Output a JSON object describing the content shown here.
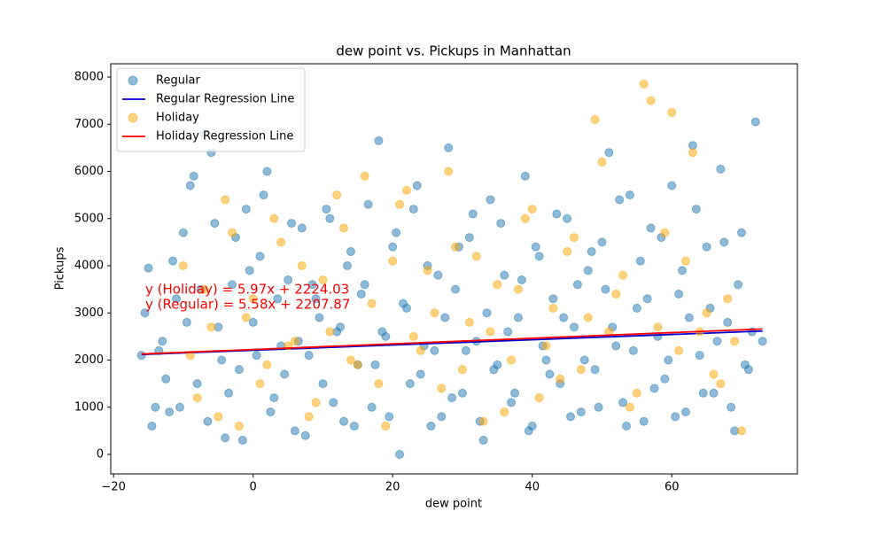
{
  "chart_data": {
    "type": "scatter",
    "title": "dew point vs. Pickups in Manhattan",
    "x_label": "dew point",
    "y_label": "Pickups",
    "xlim": [
      -20.4,
      78
    ],
    "ylim": [
      -413,
      8282
    ],
    "xticks": [
      {
        "value": -20,
        "label": "−20"
      },
      0,
      20,
      40,
      60
    ],
    "yticks": [
      0,
      1000,
      2000,
      3000,
      4000,
      5000,
      6000,
      7000,
      8000
    ],
    "legend": "upper-left",
    "annotations": [
      "y (Holiday) = 5.97x + 2224.03",
      "y (Regular) = 5.58x + 2207.87"
    ],
    "annotation_color": "#ff0000",
    "series": [
      {
        "name": "Regular",
        "type": "scatter",
        "color": "#1f77b4",
        "x": [
          -16,
          -15,
          -14,
          -13,
          -12,
          -11,
          -10,
          -9,
          -8,
          -7,
          -6,
          -5,
          -4,
          -3,
          -2,
          -1,
          0,
          1,
          2,
          3,
          4,
          5,
          6,
          7,
          8,
          9,
          10,
          11,
          12,
          13,
          14,
          15,
          16,
          17,
          18,
          19,
          20,
          21,
          22,
          23,
          24,
          25,
          26,
          27,
          28,
          29,
          30,
          31,
          32,
          33,
          34,
          35,
          36,
          37,
          38,
          39,
          40,
          41,
          42,
          43,
          44,
          45,
          46,
          47,
          48,
          49,
          50,
          51,
          52,
          53,
          54,
          55,
          56,
          57,
          58,
          59,
          60,
          61,
          62,
          63,
          64,
          65,
          66,
          67,
          68,
          69,
          70,
          71,
          72,
          73,
          -15.5,
          -14.5,
          -13.5,
          -12.5,
          -11.5,
          -10.5,
          -9.5,
          -8.5,
          -7.5,
          -6.5,
          -5.5,
          -4.5,
          -3.5,
          -2.5,
          -1.5,
          -0.5,
          0.5,
          1.5,
          2.5,
          3.5,
          4.5,
          5.5,
          6.5,
          7.5,
          8.5,
          9.5,
          10.5,
          11.5,
          12.5,
          13.5,
          14.5,
          15.5,
          16.5,
          17.5,
          18.5,
          19.5,
          20.5,
          21.5,
          22.5,
          23.5,
          24.5,
          25.5,
          26.5,
          27.5,
          28.5,
          29.5,
          30.5,
          31.5,
          32.5,
          33.5,
          34.5,
          35.5,
          36.5,
          37.5,
          38.5,
          39.5,
          40.5,
          41.5,
          42.5,
          43.5,
          44.5,
          45.5,
          46.5,
          47.5,
          48.5,
          49.5,
          50.5,
          51.5,
          52.5,
          53.5,
          54.5,
          55.5,
          56.5,
          57.5,
          58.5,
          59.5,
          60.5,
          61.5,
          62.5,
          63.5,
          64.5,
          65.5,
          66.5,
          67.5,
          68.5,
          69.5,
          70.5,
          71.5
        ],
        "values": [
          2100,
          3950,
          1000,
          2400,
          900,
          3300,
          4700,
          5700,
          1500,
          6800,
          6400,
          2700,
          350,
          3600,
          1800,
          5200,
          2800,
          4200,
          6000,
          1200,
          2300,
          3700,
          500,
          4800,
          2100,
          3300,
          1500,
          5000,
          2600,
          700,
          4300,
          1900,
          3600,
          1000,
          6650,
          2500,
          4400,
          0,
          3100,
          5200,
          1700,
          4000,
          2200,
          800,
          6500,
          3500,
          1300,
          4600,
          2400,
          300,
          5400,
          1900,
          3800,
          1100,
          2900,
          5900,
          600,
          4200,
          2000,
          3300,
          1500,
          5000,
          2700,
          900,
          3900,
          1800,
          4500,
          6400,
          2300,
          1100,
          5500,
          3100,
          700,
          4800,
          2500,
          1600,
          5700,
          3400,
          900,
          6550,
          2100,
          4400,
          1300,
          6050,
          2800,
          500,
          4700,
          1800,
          7050,
          2400,
          3000,
          600,
          2200,
          1600,
          4100,
          1000,
          2800,
          5900,
          3500,
          700,
          4900,
          2000,
          1300,
          4600,
          300,
          3900,
          2100,
          5500,
          900,
          3300,
          1700,
          4900,
          2400,
          400,
          3600,
          2900,
          5200,
          1100,
          2700,
          4000,
          600,
          3400,
          5300,
          1900,
          2600,
          800,
          4700,
          3200,
          1500,
          5700,
          2300,
          600,
          3800,
          2900,
          1200,
          4400,
          2200,
          5100,
          700,
          3000,
          1800,
          4900,
          2600,
          1300,
          3700,
          500,
          4400,
          2300,
          1700,
          5100,
          2900,
          800,
          3600,
          2000,
          4300,
          1000,
          3500,
          2700,
          5400,
          600,
          2200,
          4100,
          3300,
          1400,
          4600,
          2000,
          800,
          3900,
          2900,
          5200,
          1300,
          3100,
          2400,
          4500,
          1000,
          3600,
          1900,
          2600
        ]
      },
      {
        "name": "Regular Regression Line",
        "type": "line",
        "color": "#0000cd",
        "x": [
          -16,
          73
        ],
        "values": [
          2118.6,
          2615.2
        ]
      },
      {
        "name": "Holiday",
        "type": "scatter",
        "color": "#ffa500",
        "x": [
          -10,
          -8,
          -6,
          -4,
          -2,
          0,
          2,
          4,
          6,
          8,
          10,
          12,
          14,
          16,
          18,
          20,
          22,
          24,
          26,
          28,
          30,
          32,
          34,
          36,
          38,
          40,
          42,
          44,
          46,
          48,
          50,
          52,
          54,
          56,
          58,
          60,
          62,
          64,
          66,
          68,
          70,
          -9,
          -7,
          -5,
          -3,
          -1,
          1,
          3,
          5,
          7,
          9,
          11,
          13,
          15,
          17,
          19,
          21,
          23,
          25,
          27,
          29,
          31,
          33,
          35,
          37,
          39,
          41,
          43,
          45,
          47,
          49,
          51,
          53,
          55,
          57,
          59,
          61,
          63,
          65,
          67,
          69
        ],
        "values": [
          4000,
          1200,
          2700,
          5400,
          600,
          3300,
          1900,
          4500,
          2400,
          800,
          3700,
          5500,
          2000,
          5900,
          1500,
          4100,
          5600,
          2200,
          3000,
          6000,
          1800,
          4200,
          2600,
          900,
          3500,
          5200,
          2300,
          1600,
          4600,
          2900,
          6200,
          3400,
          1000,
          7850,
          2700,
          7250,
          4100,
          2600,
          1700,
          3300,
          500,
          2100,
          3500,
          800,
          4700,
          2900,
          1500,
          5000,
          2300,
          4000,
          1100,
          2600,
          4800,
          1900,
          3200,
          600,
          5300,
          2500,
          3900,
          1400,
          4400,
          2800,
          700,
          3600,
          2000,
          5000,
          1200,
          3100,
          4300,
          1800,
          7100,
          2600,
          3800,
          1300,
          7500,
          4700,
          2200,
          6400,
          3000,
          1500,
          2400
        ]
      },
      {
        "name": "Holiday Regression Line",
        "type": "line",
        "color": "#ff0000",
        "x": [
          -16,
          73
        ],
        "values": [
          2128.5,
          2659.8
        ]
      }
    ]
  }
}
